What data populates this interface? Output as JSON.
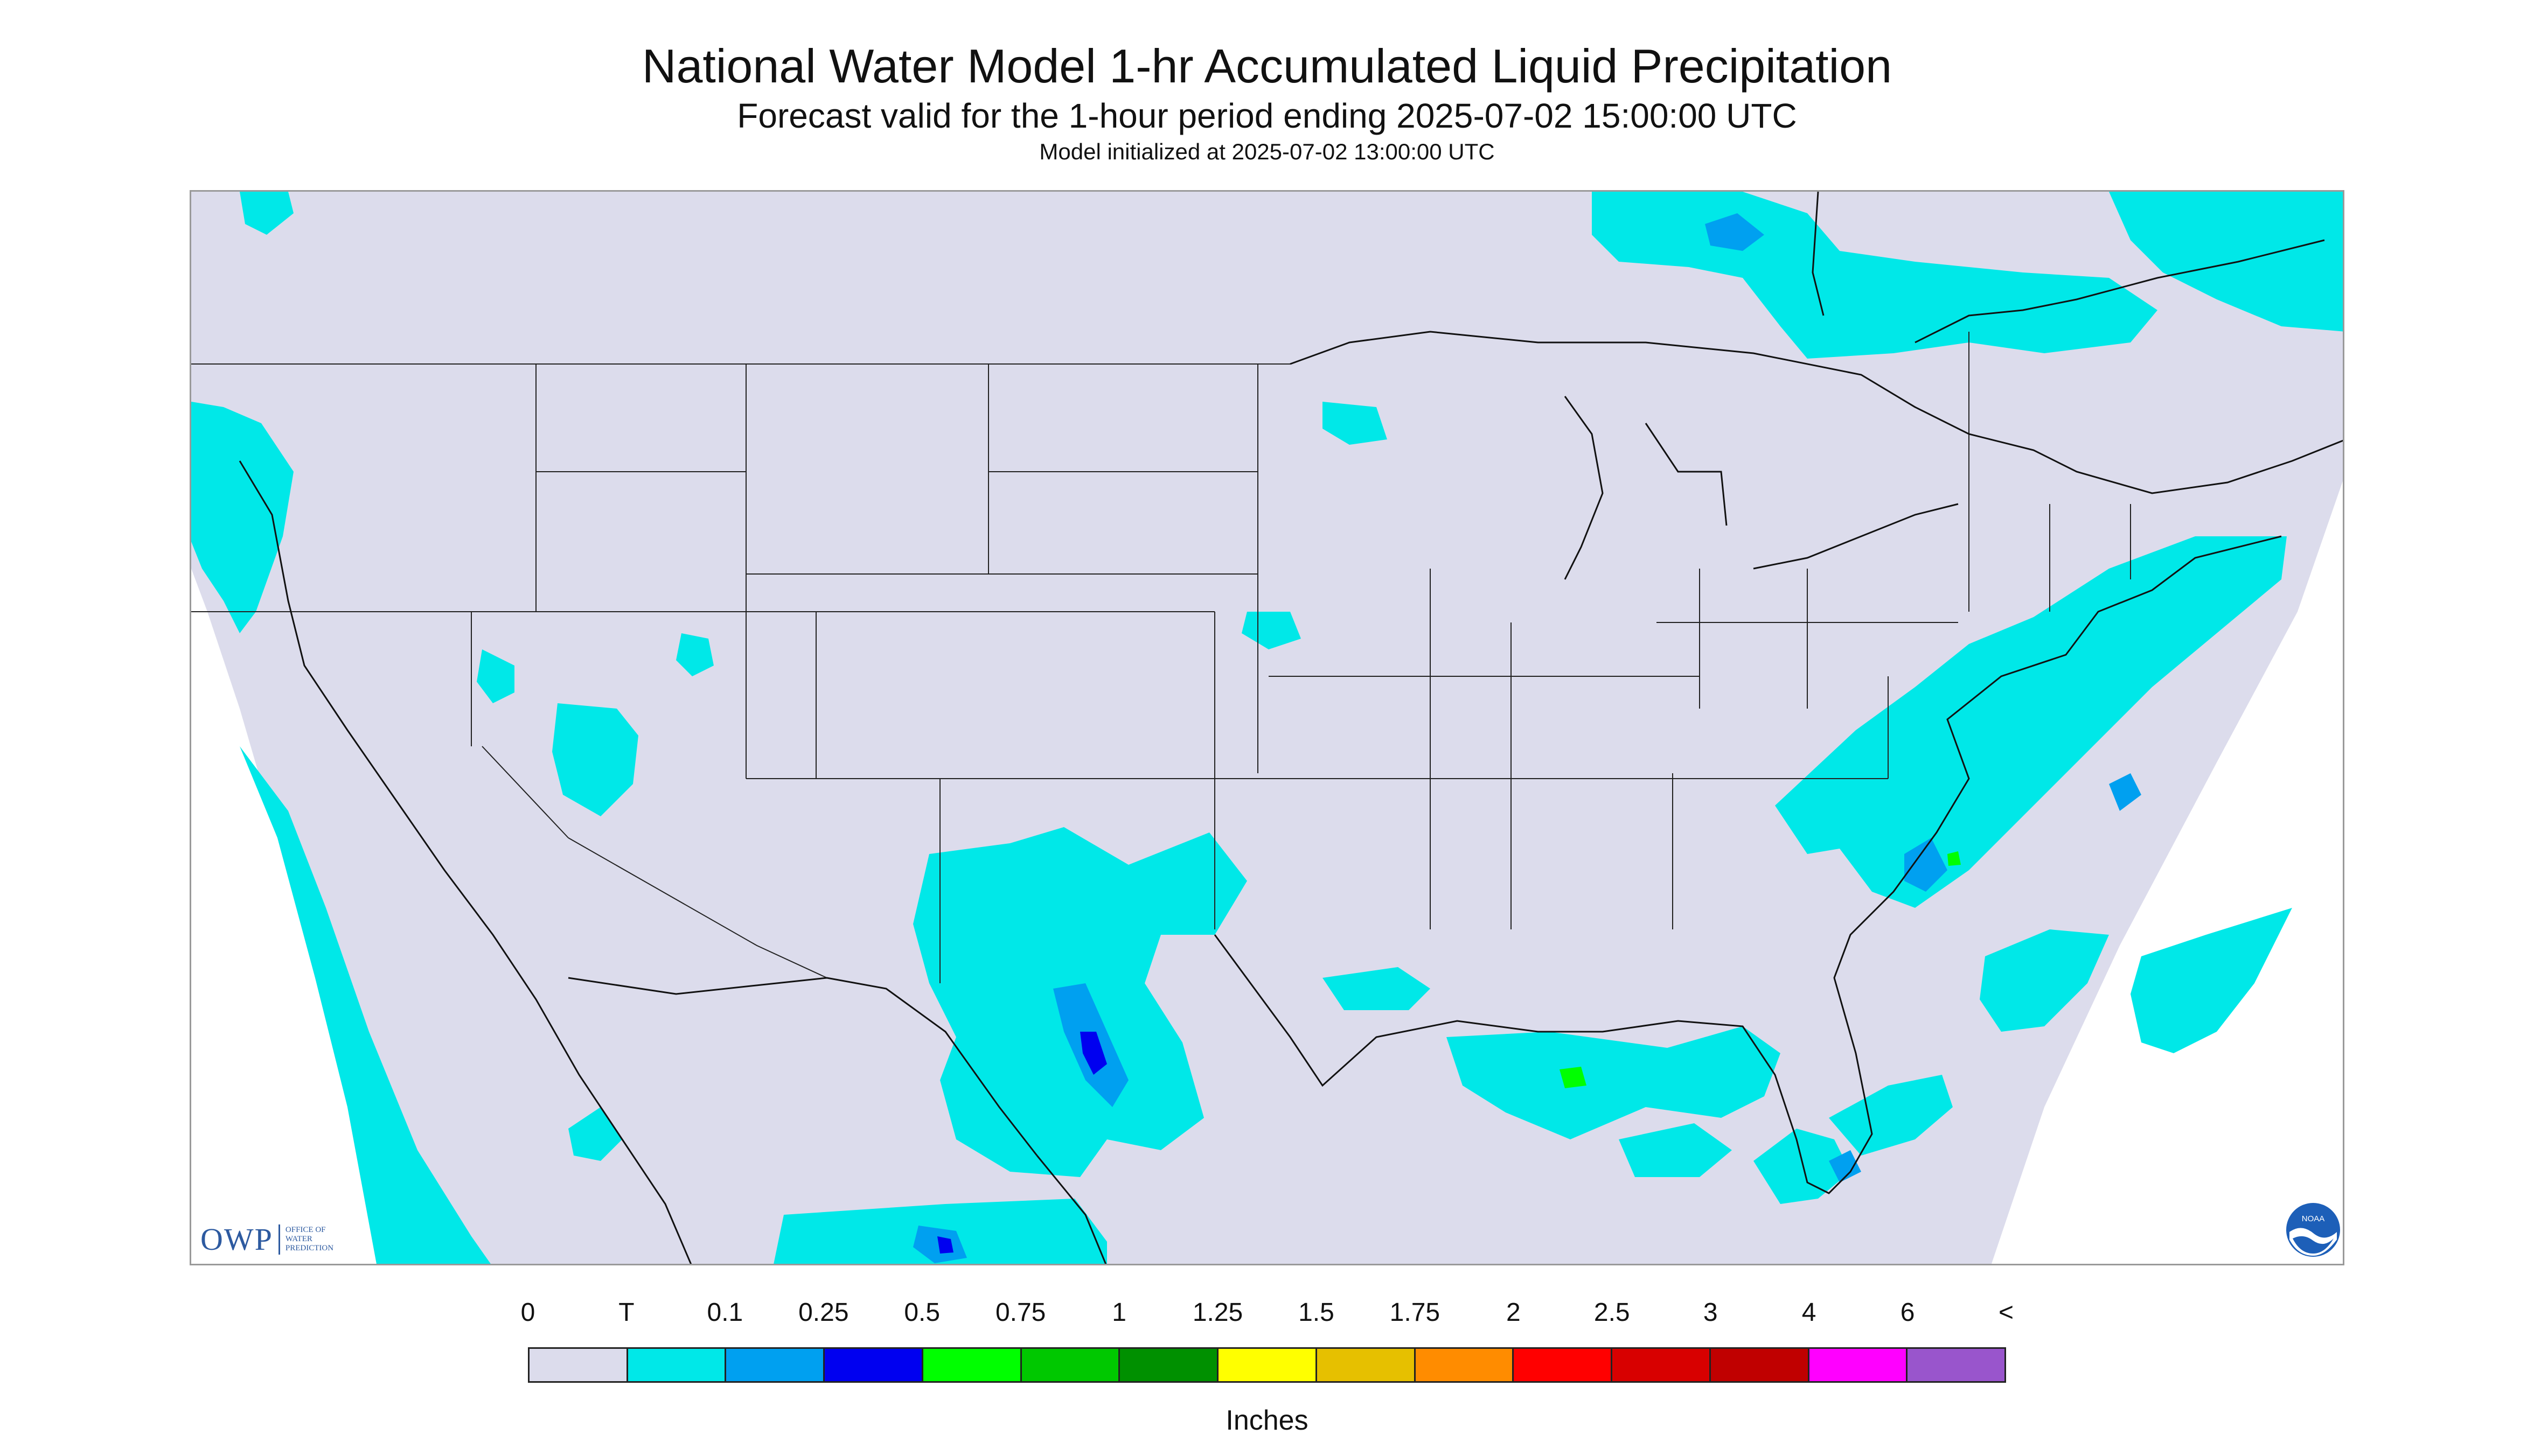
{
  "header": {
    "title": "National Water Model 1-hr Accumulated Liquid Precipitation",
    "subtitle": "Forecast valid for the 1-hour period ending 2025-07-02 15:00:00 UTC",
    "init_line": "Model initialized at 2025-07-02 13:00:00 UTC"
  },
  "map": {
    "region": "Continental United States",
    "background_color": "#dcdcec",
    "boundary_color": "#222222"
  },
  "legend": {
    "labels": [
      "0",
      "T",
      "0.1",
      "0.25",
      "0.5",
      "0.75",
      "1",
      "1.25",
      "1.5",
      "1.75",
      "2",
      "2.5",
      "3",
      "4",
      "6",
      "<"
    ],
    "colors": [
      "#dcdcec",
      "#00e8e8",
      "#00a0f0",
      "#0000f0",
      "#00ff00",
      "#00c800",
      "#009000",
      "#ffff00",
      "#e6c000",
      "#ff8c00",
      "#ff0000",
      "#d80000",
      "#c00000",
      "#ff00ff",
      "#9955cc"
    ],
    "units": "Inches"
  },
  "logos": {
    "owp": {
      "icon": "owp-logo",
      "text": "OWP",
      "small_text": [
        "OFFICE OF",
        "WATER",
        "PREDICTION"
      ]
    },
    "noaa": {
      "icon": "noaa-logo",
      "text": "NOAA"
    }
  }
}
